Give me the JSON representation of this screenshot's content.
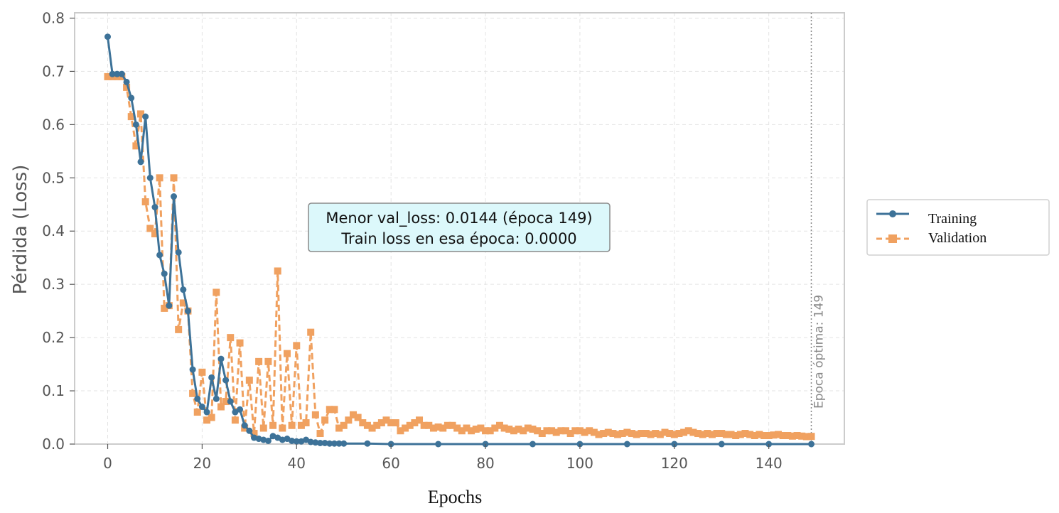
{
  "chart_data": {
    "type": "line",
    "xlabel": "Epochs",
    "ylabel": "Pérdida (Loss)",
    "xlim": [
      -7,
      156
    ],
    "ylim": [
      0,
      0.81
    ],
    "xticks": [
      0,
      20,
      40,
      60,
      80,
      100,
      120,
      140
    ],
    "yticks": [
      0.0,
      0.1,
      0.2,
      0.3,
      0.4,
      0.5,
      0.6,
      0.7,
      0.8
    ],
    "grid": true,
    "legend_position": "right, outside plot",
    "annotation": {
      "line1": "Menor val_loss: 0.0144 (época 149)",
      "line2": "Train loss en esa época: 0.0000"
    },
    "vline": {
      "x": 149,
      "label": "Época óptima: 149"
    },
    "series": [
      {
        "name": "Training",
        "color": "#3d7298",
        "marker": "circle",
        "linestyle": "solid",
        "x": [
          0,
          1,
          2,
          3,
          4,
          5,
          6,
          7,
          8,
          9,
          10,
          11,
          12,
          13,
          14,
          15,
          16,
          17,
          18,
          19,
          20,
          21,
          22,
          23,
          24,
          25,
          26,
          27,
          28,
          29,
          30,
          31,
          32,
          33,
          34,
          35,
          36,
          37,
          38,
          39,
          40,
          41,
          42,
          43,
          44,
          45,
          46,
          47,
          48,
          49,
          50,
          55,
          60,
          70,
          80,
          90,
          100,
          110,
          120,
          130,
          140,
          149
        ],
        "y": [
          0.765,
          0.695,
          0.695,
          0.695,
          0.68,
          0.65,
          0.6,
          0.53,
          0.615,
          0.5,
          0.445,
          0.355,
          0.32,
          0.26,
          0.465,
          0.36,
          0.29,
          0.25,
          0.14,
          0.085,
          0.07,
          0.06,
          0.125,
          0.085,
          0.16,
          0.12,
          0.08,
          0.06,
          0.065,
          0.035,
          0.025,
          0.012,
          0.01,
          0.008,
          0.006,
          0.015,
          0.012,
          0.008,
          0.01,
          0.006,
          0.005,
          0.005,
          0.008,
          0.004,
          0.003,
          0.002,
          0.002,
          0.001,
          0.001,
          0.001,
          0.001,
          0.001,
          0.0,
          0.0,
          0.0,
          0.0,
          0.0,
          0.0,
          0.0,
          0.0,
          0.0,
          0.0
        ]
      },
      {
        "name": "Validation",
        "color": "#f0a160",
        "marker": "square",
        "linestyle": "dashed",
        "x": [
          0,
          1,
          2,
          3,
          4,
          5,
          6,
          7,
          8,
          9,
          10,
          11,
          12,
          13,
          14,
          15,
          16,
          17,
          18,
          19,
          20,
          21,
          22,
          23,
          24,
          25,
          26,
          27,
          28,
          29,
          30,
          31,
          32,
          33,
          34,
          35,
          36,
          37,
          38,
          39,
          40,
          41,
          42,
          43,
          44,
          45,
          46,
          47,
          48,
          49,
          50,
          51,
          52,
          53,
          54,
          55,
          56,
          57,
          58,
          59,
          60,
          61,
          62,
          63,
          64,
          65,
          66,
          67,
          68,
          69,
          70,
          71,
          72,
          73,
          74,
          75,
          76,
          77,
          78,
          79,
          80,
          81,
          82,
          83,
          84,
          85,
          86,
          87,
          88,
          89,
          90,
          91,
          92,
          93,
          94,
          95,
          96,
          97,
          98,
          99,
          100,
          101,
          102,
          103,
          104,
          105,
          106,
          107,
          108,
          109,
          110,
          111,
          112,
          113,
          114,
          115,
          116,
          117,
          118,
          119,
          120,
          121,
          122,
          123,
          124,
          125,
          126,
          127,
          128,
          129,
          130,
          131,
          132,
          133,
          134,
          135,
          136,
          137,
          138,
          139,
          140,
          141,
          142,
          143,
          144,
          145,
          146,
          147,
          148,
          149
        ],
        "y": [
          0.69,
          0.69,
          0.69,
          0.69,
          0.67,
          0.615,
          0.56,
          0.62,
          0.455,
          0.405,
          0.395,
          0.5,
          0.255,
          0.26,
          0.5,
          0.215,
          0.265,
          0.25,
          0.095,
          0.06,
          0.135,
          0.045,
          0.05,
          0.285,
          0.07,
          0.08,
          0.2,
          0.045,
          0.19,
          0.03,
          0.12,
          0.02,
          0.155,
          0.03,
          0.155,
          0.035,
          0.325,
          0.03,
          0.17,
          0.035,
          0.185,
          0.035,
          0.04,
          0.21,
          0.055,
          0.02,
          0.045,
          0.065,
          0.065,
          0.03,
          0.035,
          0.045,
          0.055,
          0.05,
          0.04,
          0.035,
          0.03,
          0.035,
          0.04,
          0.045,
          0.04,
          0.04,
          0.025,
          0.03,
          0.035,
          0.04,
          0.045,
          0.035,
          0.035,
          0.03,
          0.032,
          0.03,
          0.035,
          0.035,
          0.03,
          0.025,
          0.03,
          0.025,
          0.028,
          0.03,
          0.025,
          0.025,
          0.03,
          0.035,
          0.03,
          0.028,
          0.025,
          0.028,
          0.025,
          0.03,
          0.028,
          0.025,
          0.02,
          0.025,
          0.025,
          0.022,
          0.025,
          0.025,
          0.02,
          0.025,
          0.025,
          0.022,
          0.025,
          0.022,
          0.018,
          0.02,
          0.022,
          0.02,
          0.018,
          0.02,
          0.022,
          0.02,
          0.018,
          0.02,
          0.02,
          0.018,
          0.02,
          0.018,
          0.022,
          0.02,
          0.018,
          0.02,
          0.022,
          0.025,
          0.022,
          0.02,
          0.018,
          0.02,
          0.018,
          0.02,
          0.02,
          0.018,
          0.018,
          0.016,
          0.018,
          0.02,
          0.018,
          0.016,
          0.018,
          0.016,
          0.016,
          0.017,
          0.018,
          0.016,
          0.016,
          0.015,
          0.016,
          0.015,
          0.014,
          0.0144
        ]
      }
    ]
  }
}
